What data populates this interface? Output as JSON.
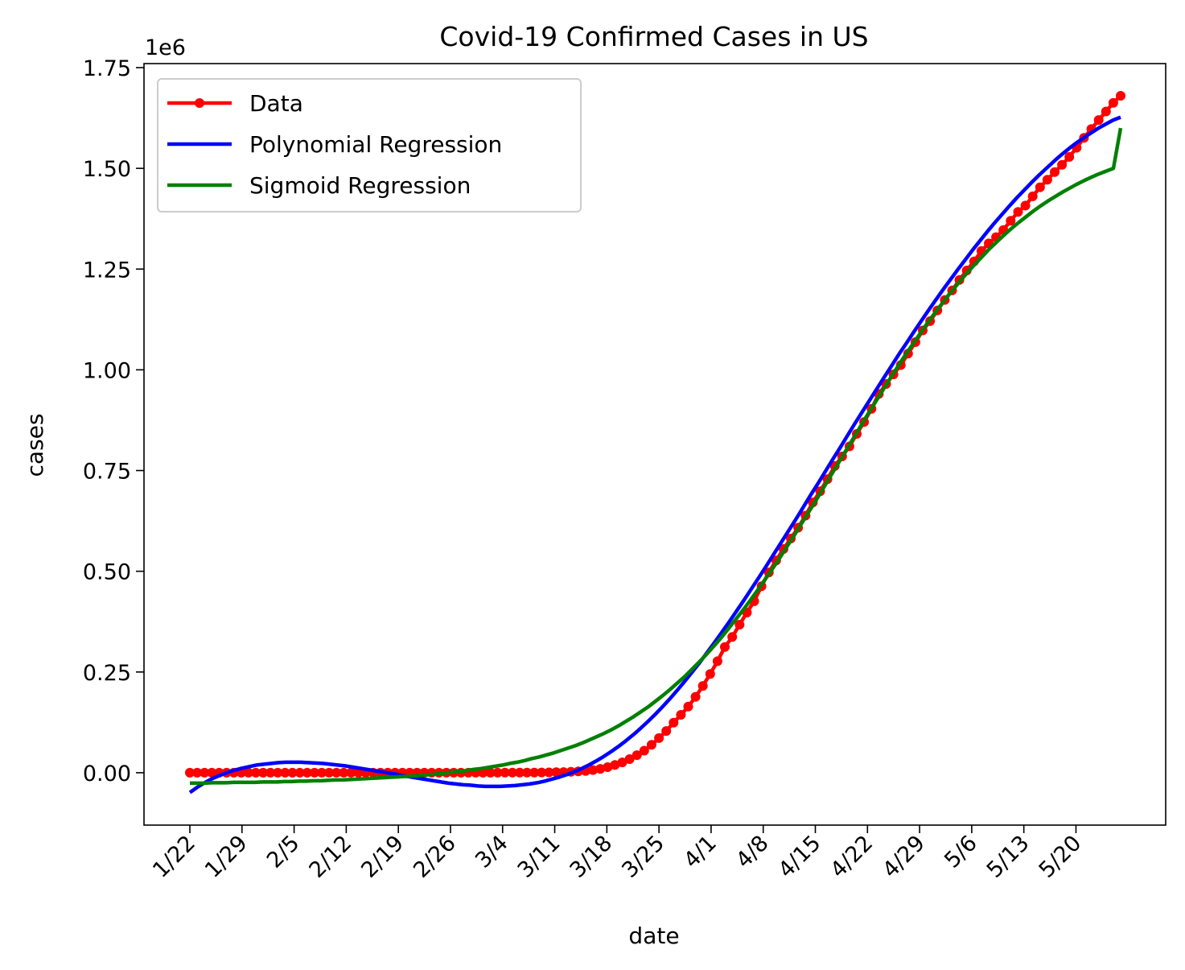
{
  "chart_data": {
    "type": "line",
    "title": "Covid-19 Confirmed Cases in US",
    "xlabel": "date",
    "ylabel": "cases",
    "y_offset_label": "1e6",
    "x_tick_labels": [
      "1/22",
      "1/29",
      "2/5",
      "2/12",
      "2/19",
      "2/26",
      "3/4",
      "3/11",
      "3/18",
      "3/25",
      "4/1",
      "4/8",
      "4/15",
      "4/22",
      "4/29",
      "5/6",
      "5/13",
      "5/20"
    ],
    "x_tick_days": [
      0,
      7,
      14,
      21,
      28,
      35,
      42,
      49,
      56,
      63,
      70,
      77,
      84,
      91,
      98,
      105,
      112,
      119
    ],
    "x_range_days": [
      0,
      125
    ],
    "y_tick_labels": [
      "0.00",
      "0.25",
      "0.50",
      "0.75",
      "1.00",
      "1.25",
      "1.50",
      "1.75"
    ],
    "y_tick_values": [
      0,
      0.25,
      0.5,
      0.75,
      1.0,
      1.25,
      1.5,
      1.75
    ],
    "ylim": [
      -0.13,
      1.76
    ],
    "y_unit_multiplier": 1000000,
    "grid": false,
    "legend_position": "top-left",
    "series": [
      {
        "name": "Data",
        "color": "#ff0000",
        "style": "line-with-markers",
        "values": [
          0,
          0,
          0,
          0,
          0,
          0,
          0,
          0,
          0,
          0,
          0,
          0,
          0,
          0,
          0,
          0,
          0,
          0,
          0,
          0,
          0,
          0,
          0,
          0,
          0,
          0,
          0,
          0,
          0,
          0,
          0,
          0,
          0,
          0,
          0,
          0,
          0.0001,
          0.0001,
          0.0001,
          0.0001,
          0.0001,
          0.0001,
          0.0001,
          0.0002,
          0.0002,
          0.0002,
          0.0003,
          0.0005,
          0.0006,
          0.0009,
          0.0013,
          0.0017,
          0.0024,
          0.0032,
          0.0045,
          0.0066,
          0.0096,
          0.0139,
          0.0193,
          0.0257,
          0.0338,
          0.0436,
          0.0549,
          0.0692,
          0.0859,
          0.1036,
          0.1243,
          0.1437,
          0.1641,
          0.1885,
          0.2154,
          0.2453,
          0.2767,
          0.312,
          0.337,
          0.3675,
          0.3975,
          0.4257,
          0.4629,
          0.4971,
          0.527,
          0.5553,
          0.5812,
          0.6083,
          0.6381,
          0.671,
          0.6987,
          0.7287,
          0.7613,
          0.785,
          0.81,
          0.8409,
          0.8704,
          0.9031,
          0.94,
          0.9649,
          0.9887,
          1.0117,
          1.0401,
          1.0688,
          1.0978,
          1.1209,
          1.1474,
          1.1734,
          1.1972,
          1.2229,
          1.2465,
          1.2692,
          1.2949,
          1.3136,
          1.3293,
          1.3471,
          1.3701,
          1.3919,
          1.4076,
          1.4305,
          1.4532,
          1.4718,
          1.4909,
          1.5086,
          1.5285,
          1.5512,
          1.5757,
          1.5978,
          1.62,
          1.6411,
          1.6627,
          1.68
        ]
      },
      {
        "name": "Polynomial Regression",
        "color": "#0000ff",
        "style": "line",
        "values": [
          -0.049,
          -0.036,
          -0.025,
          -0.015,
          -0.007,
          0.0,
          0.006,
          0.011,
          0.015,
          0.019,
          0.021,
          0.023,
          0.025,
          0.026,
          0.026,
          0.026,
          0.025,
          0.024,
          0.023,
          0.021,
          0.019,
          0.017,
          0.014,
          0.011,
          0.008,
          0.005,
          0.002,
          -0.001,
          -0.004,
          -0.008,
          -0.011,
          -0.014,
          -0.017,
          -0.02,
          -0.023,
          -0.026,
          -0.028,
          -0.03,
          -0.031,
          -0.033,
          -0.034,
          -0.034,
          -0.034,
          -0.033,
          -0.032,
          -0.03,
          -0.028,
          -0.025,
          -0.021,
          -0.016,
          -0.011,
          -0.005,
          0.002,
          0.01,
          0.019,
          0.029,
          0.04,
          0.052,
          0.065,
          0.079,
          0.094,
          0.11,
          0.127,
          0.145,
          0.164,
          0.184,
          0.205,
          0.227,
          0.25,
          0.273,
          0.298,
          0.323,
          0.348,
          0.374,
          0.401,
          0.428,
          0.456,
          0.484,
          0.512,
          0.541,
          0.57,
          0.599,
          0.628,
          0.658,
          0.688,
          0.717,
          0.747,
          0.777,
          0.806,
          0.836,
          0.866,
          0.895,
          0.924,
          0.953,
          0.982,
          1.01,
          1.039,
          1.066,
          1.094,
          1.121,
          1.148,
          1.174,
          1.2,
          1.225,
          1.25,
          1.274,
          1.298,
          1.321,
          1.344,
          1.366,
          1.387,
          1.408,
          1.428,
          1.447,
          1.466,
          1.484,
          1.501,
          1.518,
          1.534,
          1.549,
          1.563,
          1.576,
          1.588,
          1.6,
          1.61,
          1.62,
          1.627
        ]
      },
      {
        "name": "Sigmoid Regression",
        "color": "#008000",
        "style": "line",
        "values": [
          -0.026,
          -0.026,
          -0.026,
          -0.025,
          -0.025,
          -0.025,
          -0.024,
          -0.024,
          -0.024,
          -0.024,
          -0.023,
          -0.023,
          -0.023,
          -0.022,
          -0.022,
          -0.021,
          -0.021,
          -0.02,
          -0.02,
          -0.019,
          -0.018,
          -0.018,
          -0.017,
          -0.016,
          -0.015,
          -0.014,
          -0.013,
          -0.012,
          -0.011,
          -0.01,
          -0.009,
          -0.008,
          -0.006,
          -0.005,
          -0.003,
          -0.001,
          0.001,
          0.003,
          0.005,
          0.008,
          0.01,
          0.013,
          0.016,
          0.019,
          0.023,
          0.026,
          0.03,
          0.035,
          0.039,
          0.044,
          0.049,
          0.055,
          0.061,
          0.067,
          0.074,
          0.082,
          0.09,
          0.098,
          0.107,
          0.117,
          0.128,
          0.139,
          0.151,
          0.163,
          0.177,
          0.191,
          0.206,
          0.222,
          0.238,
          0.256,
          0.274,
          0.293,
          0.313,
          0.334,
          0.356,
          0.379,
          0.402,
          0.426,
          0.451,
          0.477,
          0.503,
          0.53,
          0.558,
          0.586,
          0.615,
          0.644,
          0.673,
          0.703,
          0.733,
          0.763,
          0.793,
          0.823,
          0.853,
          0.883,
          0.912,
          0.941,
          0.97,
          0.998,
          1.026,
          1.053,
          1.079,
          1.105,
          1.13,
          1.154,
          1.178,
          1.2,
          1.222,
          1.243,
          1.263,
          1.282,
          1.301,
          1.318,
          1.335,
          1.351,
          1.366,
          1.38,
          1.394,
          1.407,
          1.419,
          1.43,
          1.441,
          1.451,
          1.461,
          1.47,
          1.478,
          1.486,
          1.493,
          1.5,
          1.6
        ]
      }
    ]
  }
}
